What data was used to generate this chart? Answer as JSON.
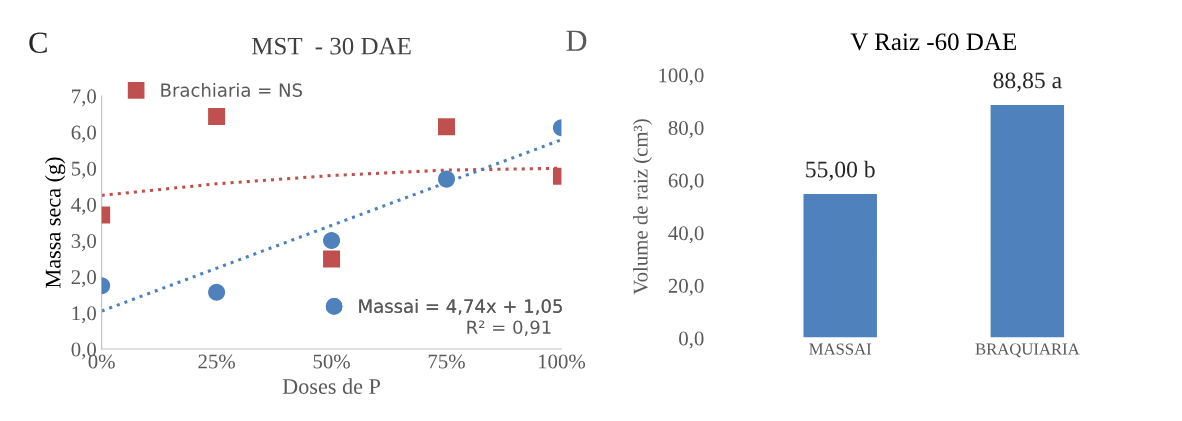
{
  "chart_data": [
    {
      "type": "scatter",
      "title": "MST  - 30 DAE",
      "xlabel": "Doses de P",
      "ylabel": "Massa seca (g)",
      "x": [
        0,
        25,
        50,
        75,
        100
      ],
      "series": [
        {
          "name": "Brachiaria = NS",
          "color": "#c0504d",
          "marker": "square",
          "values": [
            3.71,
            6.43,
            2.49,
            6.15,
            4.78
          ]
        },
        {
          "name": "Massai = 4,74x + 1,05",
          "color": "#4f81bd",
          "marker": "circle",
          "values": [
            1.75,
            1.57,
            3.0,
            4.7,
            6.12
          ]
        },
        {
          "type": "line",
          "color": "#c0504d",
          "line_style": "dotted",
          "marker": "none",
          "x": [
            0,
            25,
            50,
            75,
            100
          ],
          "values": [
            4.25,
            4.57,
            4.8,
            4.95,
            5.0
          ]
        },
        {
          "type": "line",
          "color": "#4f81bd",
          "line_style": "dotted",
          "marker": "none",
          "x": [
            0,
            100
          ],
          "values": [
            1.05,
            5.79
          ]
        }
      ],
      "xlim": [
        0,
        100
      ],
      "xticks": [
        {
          "value": 0,
          "label": "0%"
        },
        {
          "value": 25,
          "label": "25%"
        },
        {
          "value": 50,
          "label": "50%"
        },
        {
          "value": 75,
          "label": "75%"
        },
        {
          "value": 100,
          "label": "100%"
        }
      ],
      "ylim": [
        0,
        7
      ],
      "yticks": [
        {
          "value": 0,
          "label": "0,0"
        },
        {
          "value": 1,
          "label": "1,0"
        },
        {
          "value": 2,
          "label": "2,0"
        },
        {
          "value": 3,
          "label": "3,0"
        },
        {
          "value": 4,
          "label": "4,0"
        },
        {
          "value": 5,
          "label": "5,0"
        },
        {
          "value": 6,
          "label": "6,0"
        },
        {
          "value": 7,
          "label": "7,0"
        }
      ],
      "legend": [
        "top left",
        "bottom right"
      ],
      "grid": false,
      "annotations": [
        "C",
        "R² = 0,91"
      ]
    },
    {
      "type": "bar",
      "title": "V Raiz -60 DAE",
      "ylabel": "Volume de raiz (cm³)",
      "categories": [
        "MASSAI",
        "BRAQUIARIA"
      ],
      "values": [
        55.0,
        88.85
      ],
      "color": "#4f81bd",
      "value_labels": [
        "55,00 b",
        "88,85 a"
      ],
      "ylim": [
        0,
        100
      ],
      "yticks": [
        {
          "value": 0,
          "label": "0,0"
        },
        {
          "value": 20,
          "label": "20,0"
        },
        {
          "value": 40,
          "label": "40,0"
        },
        {
          "value": 60,
          "label": "60,0"
        },
        {
          "value": 80,
          "label": "80,0"
        },
        {
          "value": 100,
          "label": "100,0"
        }
      ],
      "grid": false,
      "annotations": [
        "D"
      ]
    }
  ]
}
